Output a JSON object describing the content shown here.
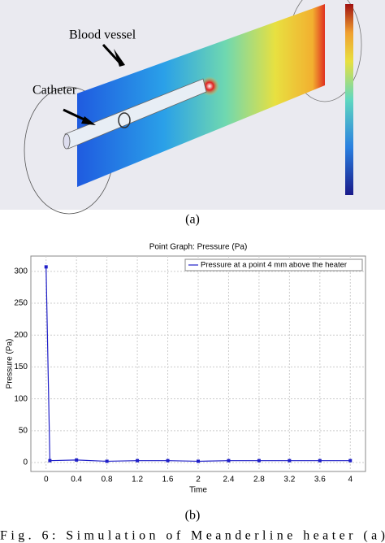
{
  "figure_a": {
    "labels": [
      "Blood vessel",
      "Catheter"
    ],
    "caption": "(a)"
  },
  "chart_data": {
    "type": "line",
    "title": "Point Graph: Pressure (Pa)",
    "x_label": "Time",
    "y_label": "Pressure (Pa)",
    "x": [
      0,
      0.05,
      0.4,
      0.8,
      1.2,
      1.6,
      2,
      2.4,
      2.8,
      3.2,
      3.6,
      4
    ],
    "series": [
      {
        "name": "Pressure at a point 4 mm above the heater",
        "color": "#2020c8",
        "values": [
          307,
          3,
          4,
          2,
          3,
          3,
          2,
          3,
          3,
          3,
          3,
          3
        ]
      }
    ],
    "xlim": [
      -0.2,
      4.2
    ],
    "ylim": [
      -14,
      324
    ],
    "xticks": [
      0,
      0.4,
      0.8,
      1.2,
      1.6,
      2,
      2.4,
      2.8,
      3.2,
      3.6,
      4
    ],
    "yticks": [
      0,
      50,
      100,
      150,
      200,
      250,
      300
    ],
    "grid": true,
    "legend": "top-right",
    "caption": "(b)"
  },
  "caption": "Fig. 6: Simulation of Meanderline heater (a)"
}
